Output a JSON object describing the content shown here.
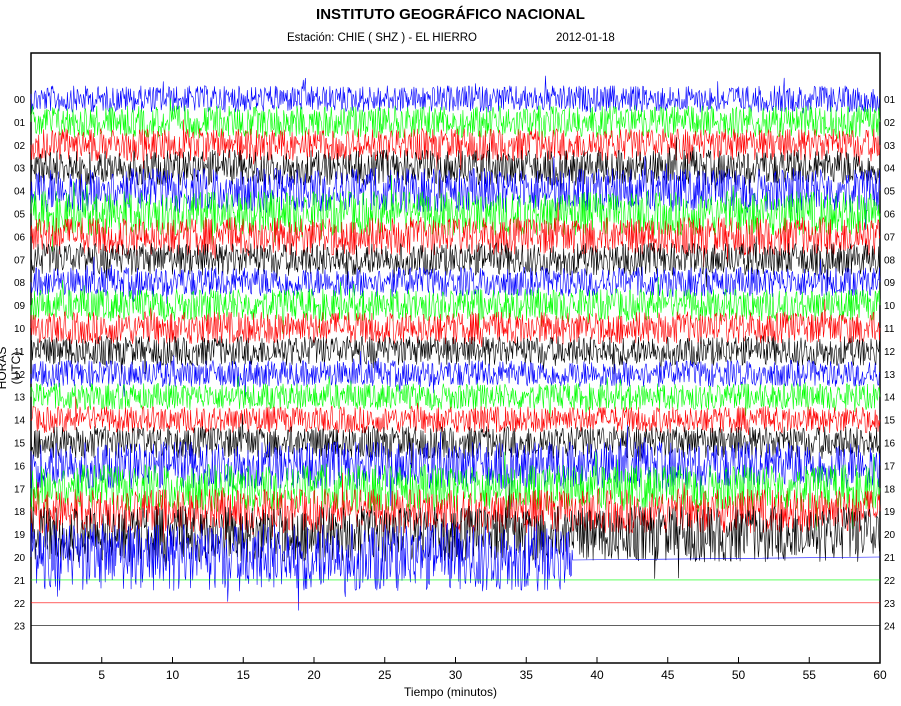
{
  "title": "INSTITUTO GEOGRÁFICO NACIONAL",
  "station": "Estación:  CHIE ( SHZ ) - EL HIERRO",
  "date": "2012-01-18",
  "chart_data": {
    "type": "line",
    "subtype": "helicorder",
    "xlabel": "Tiempo (minutos)",
    "ylabel": "HORAS (UTC)",
    "xlim": [
      0,
      60
    ],
    "x_ticks": [
      5,
      10,
      15,
      20,
      25,
      30,
      35,
      40,
      45,
      50,
      55,
      60
    ],
    "left_tick_labels": [
      "00",
      "01",
      "02",
      "03",
      "04",
      "05",
      "06",
      "07",
      "08",
      "09",
      "10",
      "11",
      "12",
      "13",
      "14",
      "15",
      "16",
      "17",
      "18",
      "19",
      "20",
      "21",
      "22",
      "23"
    ],
    "right_tick_labels": [
      "01",
      "02",
      "03",
      "04",
      "05",
      "06",
      "07",
      "08",
      "09",
      "10",
      "11",
      "12",
      "13",
      "14",
      "15",
      "16",
      "17",
      "18",
      "19",
      "20",
      "21",
      "22",
      "23",
      "24"
    ],
    "color_cycle": [
      "#0000ff",
      "#00ff00",
      "#ff0000",
      "#000000"
    ],
    "series": [
      {
        "hour": "00",
        "amplitude": 0.9
      },
      {
        "hour": "01",
        "amplitude": 1.1
      },
      {
        "hour": "02",
        "amplitude": 1.1
      },
      {
        "hour": "03",
        "amplitude": 1.2
      },
      {
        "hour": "04",
        "amplitude": 1.5
      },
      {
        "hour": "05",
        "amplitude": 1.5
      },
      {
        "hour": "06",
        "amplitude": 1.3
      },
      {
        "hour": "07",
        "amplitude": 1.1
      },
      {
        "hour": "08",
        "amplitude": 1.0
      },
      {
        "hour": "09",
        "amplitude": 1.1
      },
      {
        "hour": "10",
        "amplitude": 1.1
      },
      {
        "hour": "11",
        "amplitude": 1.0
      },
      {
        "hour": "12",
        "amplitude": 0.9
      },
      {
        "hour": "13",
        "amplitude": 0.9
      },
      {
        "hour": "14",
        "amplitude": 0.9
      },
      {
        "hour": "15",
        "amplitude": 1.1
      },
      {
        "hour": "16",
        "amplitude": 1.6
      },
      {
        "hour": "17",
        "amplitude": 1.6
      },
      {
        "hour": "18",
        "amplitude": 1.5
      },
      {
        "hour": "19",
        "amplitude": 1.9
      },
      {
        "hour": "20",
        "amplitude": 2.3,
        "end_minute": 38.3
      },
      {
        "hour": "21",
        "amplitude": 0.0
      },
      {
        "hour": "22",
        "amplitude": 0.0
      },
      {
        "hour": "23",
        "amplitude": 0.0
      }
    ],
    "grid": false
  }
}
